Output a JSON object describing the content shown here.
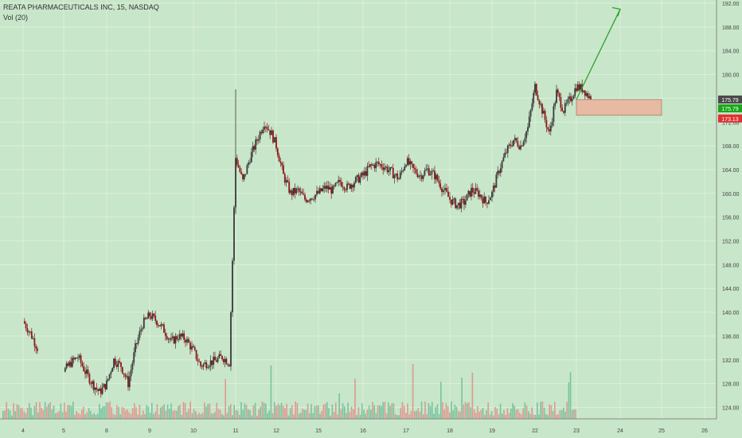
{
  "header": {
    "title": "REATA PHARMACEUTICALS INC, 15, NASDAQ",
    "volume_label": "Vol (20)"
  },
  "colors": {
    "background": "#c8e6c9",
    "up_candle": "#3a3a3a",
    "down_candle": "#8a1a1a",
    "target_arrow": "#2ea22e",
    "stop_zone": "#e8b9a3",
    "badge_last": "#4a4a4a",
    "badge_current": "#1aa51a",
    "badge_stop": "#e23030"
  },
  "chart_data": {
    "type": "candlestick",
    "symbol": "REATA PHARMACEUTICALS INC",
    "interval": "15",
    "exchange": "NASDAQ",
    "x_tick_labels": [
      "4",
      "5",
      "8",
      "9",
      "10",
      "11",
      "12",
      "15",
      "16",
      "17",
      "18",
      "19",
      "22",
      "23",
      "24",
      "25",
      "26"
    ],
    "y_tick_labels": [
      "192.00",
      "188.00",
      "184.00",
      "180.00",
      "176.00",
      "172.00",
      "168.00",
      "164.00",
      "160.00",
      "156.00",
      "152.00",
      "148.00",
      "144.00",
      "140.00",
      "136.00",
      "132.00",
      "128.00",
      "124.00"
    ],
    "ylim": [
      121.5,
      192.5
    ],
    "price_path": [
      {
        "day": "4",
        "price": 138.5
      },
      {
        "day": "4",
        "price": 136.5
      },
      {
        "day": "4",
        "price": 134
      },
      {
        "day": "5",
        "price": 130
      },
      {
        "day": "5",
        "price": 131.5
      },
      {
        "day": "5",
        "price": 132.5
      },
      {
        "day": "5",
        "price": 130
      },
      {
        "day": "5",
        "price": 128
      },
      {
        "day": "5",
        "price": 126.5
      },
      {
        "day": "8",
        "price": 128
      },
      {
        "day": "8",
        "price": 132
      },
      {
        "day": "8",
        "price": 131
      },
      {
        "day": "8",
        "price": 128
      },
      {
        "day": "8",
        "price": 134
      },
      {
        "day": "8",
        "price": 138
      },
      {
        "day": "9",
        "price": 139.5
      },
      {
        "day": "9",
        "price": 138.5
      },
      {
        "day": "9",
        "price": 137
      },
      {
        "day": "9",
        "price": 135
      },
      {
        "day": "9",
        "price": 136
      },
      {
        "day": "9",
        "price": 135.5
      },
      {
        "day": "10",
        "price": 133.5
      },
      {
        "day": "10",
        "price": 131
      },
      {
        "day": "10",
        "price": 131.5
      },
      {
        "day": "10",
        "price": 131.8
      },
      {
        "day": "10",
        "price": 132.5
      },
      {
        "day": "10",
        "price": 131.5
      },
      {
        "day": "11",
        "price": 166
      },
      {
        "day": "11",
        "price": 162
      },
      {
        "day": "11",
        "price": 166
      },
      {
        "day": "11",
        "price": 169
      },
      {
        "day": "11",
        "price": 172
      },
      {
        "day": "11",
        "price": 170
      },
      {
        "day": "12",
        "price": 168
      },
      {
        "day": "12",
        "price": 163
      },
      {
        "day": "12",
        "price": 160
      },
      {
        "day": "12",
        "price": 160.5
      },
      {
        "day": "12",
        "price": 159
      },
      {
        "day": "12",
        "price": 159.5
      },
      {
        "day": "15",
        "price": 160
      },
      {
        "day": "15",
        "price": 161
      },
      {
        "day": "15",
        "price": 160.5
      },
      {
        "day": "15",
        "price": 162
      },
      {
        "day": "15",
        "price": 161
      },
      {
        "day": "15",
        "price": 162
      },
      {
        "day": "16",
        "price": 163
      },
      {
        "day": "16",
        "price": 164.5
      },
      {
        "day": "16",
        "price": 165
      },
      {
        "day": "16",
        "price": 164.5
      },
      {
        "day": "16",
        "price": 163.5
      },
      {
        "day": "16",
        "price": 162.5
      },
      {
        "day": "17",
        "price": 165.5
      },
      {
        "day": "17",
        "price": 164
      },
      {
        "day": "17",
        "price": 163
      },
      {
        "day": "17",
        "price": 164
      },
      {
        "day": "17",
        "price": 163
      },
      {
        "day": "17",
        "price": 161
      },
      {
        "day": "18",
        "price": 159
      },
      {
        "day": "18",
        "price": 158
      },
      {
        "day": "18",
        "price": 158.5
      },
      {
        "day": "18",
        "price": 160.5
      },
      {
        "day": "18",
        "price": 160
      },
      {
        "day": "18",
        "price": 158.5
      },
      {
        "day": "19",
        "price": 160
      },
      {
        "day": "19",
        "price": 164
      },
      {
        "day": "19",
        "price": 167
      },
      {
        "day": "19",
        "price": 169
      },
      {
        "day": "19",
        "price": 168
      },
      {
        "day": "19",
        "price": 171
      },
      {
        "day": "22",
        "price": 178
      },
      {
        "day": "22",
        "price": 174
      },
      {
        "day": "22",
        "price": 170
      },
      {
        "day": "22",
        "price": 177
      },
      {
        "day": "22",
        "price": 174
      },
      {
        "day": "22",
        "price": 176
      },
      {
        "day": "23",
        "price": 178
      },
      {
        "day": "23",
        "price": 177.5
      },
      {
        "day": "23",
        "price": 175.79
      }
    ],
    "last_price": 175.79,
    "price_badges": [
      {
        "label": "175.79",
        "price": 175.79,
        "style": "last"
      },
      {
        "label": "175.79",
        "price": 174.3,
        "style": "current"
      },
      {
        "label": "173.13",
        "price": 172.6,
        "style": "stop"
      }
    ],
    "projection_arrow": {
      "from": {
        "day": "23",
        "price": 175.8
      },
      "to": {
        "day": "24",
        "price": 191
      }
    },
    "stop_zone": {
      "from_day": "23",
      "to_day": "25",
      "top": 175.79,
      "bottom": 173.13
    },
    "volume_series": "Vol (20)"
  }
}
